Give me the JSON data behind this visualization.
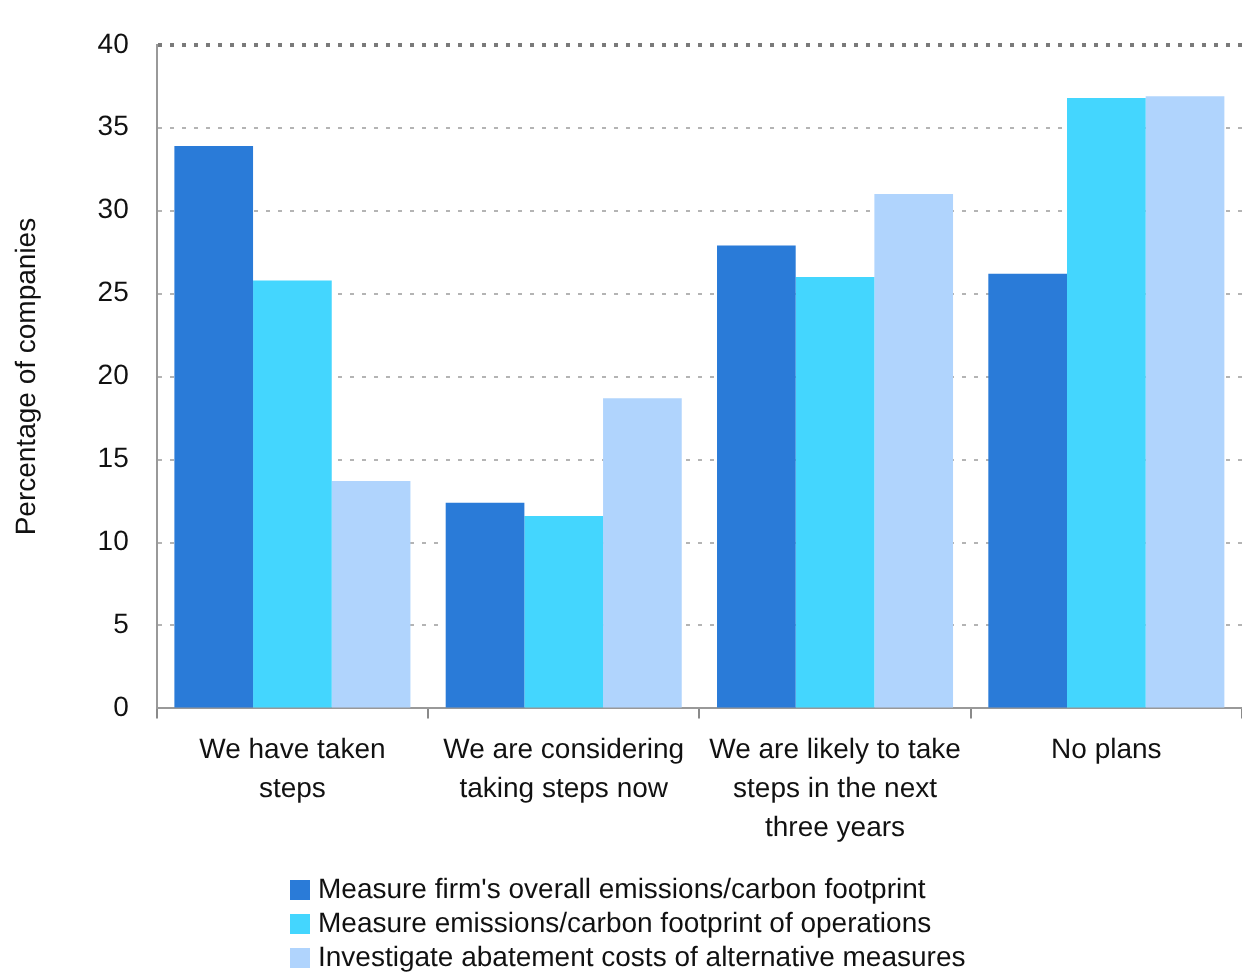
{
  "chart_data": {
    "type": "bar",
    "ylabel": "Percentage of companies",
    "categories": [
      "We have taken steps",
      "We are considering taking steps now",
      "We are likely to take steps in the next three years",
      "No plans"
    ],
    "series": [
      {
        "name": "Measure firm's overall emissions/carbon footprint",
        "color": "#2a7bd8",
        "values": [
          33.9,
          12.4,
          27.9,
          26.2
        ]
      },
      {
        "name": "Measure emissions/carbon footprint of operations",
        "color": "#44d6fe",
        "values": [
          25.8,
          11.6,
          26.0,
          36.8
        ]
      },
      {
        "name": "Investigate abatement costs of alternative measures",
        "color": "#b0d4fd",
        "values": [
          13.7,
          18.7,
          31.0,
          36.9
        ]
      }
    ],
    "ylim": [
      0,
      40
    ],
    "yticks": [
      0,
      5,
      10,
      15,
      20,
      25,
      30,
      35,
      40
    ],
    "grid": "y",
    "legend": "bottom"
  }
}
